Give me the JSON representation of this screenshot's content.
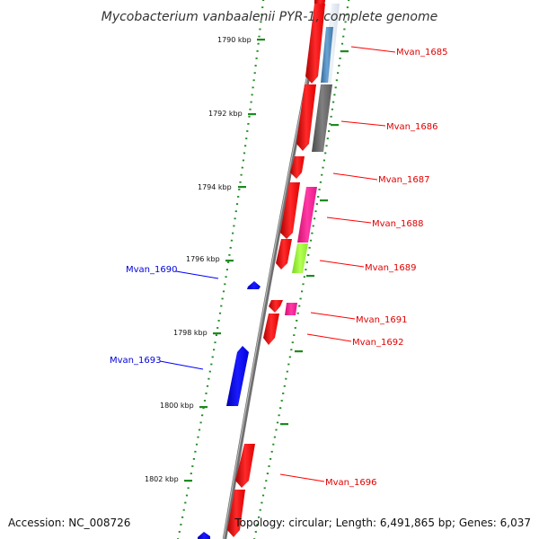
{
  "title": "Mycobacterium vanbaalenii PYR-1, complete genome",
  "footer": {
    "accession": "Accession: NC_008726",
    "summary": "Topology: circular; Length: 6,491,865 bp; Genes: 6,037"
  },
  "ticks": [
    {
      "label": "1790 kbp"
    },
    {
      "label": "1792 kbp"
    },
    {
      "label": "1794 kbp"
    },
    {
      "label": "1796 kbp"
    },
    {
      "label": "1798 kbp"
    },
    {
      "label": "1800 kbp"
    },
    {
      "label": "1802 kbp"
    }
  ],
  "genes": [
    {
      "label": "Mvan_1685",
      "strand": "forward"
    },
    {
      "label": "Mvan_1686",
      "strand": "forward"
    },
    {
      "label": "Mvan_1687",
      "strand": "forward"
    },
    {
      "label": "Mvan_1688",
      "strand": "forward"
    },
    {
      "label": "Mvan_1689",
      "strand": "forward"
    },
    {
      "label": "Mvan_1690",
      "strand": "reverse"
    },
    {
      "label": "Mvan_1691",
      "strand": "forward"
    },
    {
      "label": "Mvan_1692",
      "strand": "forward"
    },
    {
      "label": "Mvan_1693",
      "strand": "reverse"
    },
    {
      "label": "Mvan_1696",
      "strand": "forward"
    }
  ],
  "colors": {
    "forward_gene": "#ff0000",
    "reverse_gene": "#0000ff",
    "backbone": "#808080",
    "ticks": "#228b22",
    "cog_pink": "#ff1493",
    "cog_green": "#99ff33",
    "cog_steelblue": "#4682b4",
    "cog_gray": "#666666"
  }
}
